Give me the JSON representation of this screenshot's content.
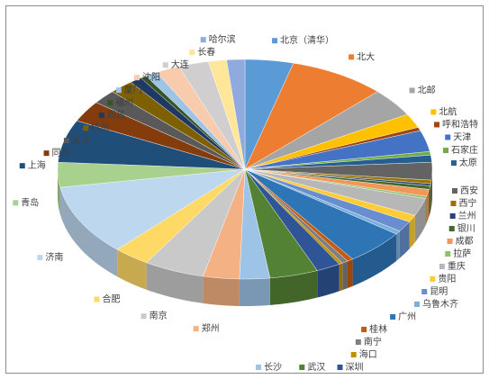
{
  "chart_data": {
    "type": "pie3d",
    "categories": [
      "北京（清华）",
      "北大",
      "北邮",
      "北航",
      "呼和浩特",
      "天津",
      "石家庄",
      "太原",
      "西安",
      "西宁",
      "兰州",
      "银川",
      "成都",
      "拉萨",
      "重庆",
      "贵阳",
      "昆明",
      "乌鲁木齐",
      "广州",
      "桂林",
      "南宁",
      "海口",
      "深圳",
      "武汉",
      "长沙",
      "郑州",
      "南京",
      "合肥",
      "济南",
      "青岛",
      "上海",
      "同济",
      "复旦",
      "杭州",
      "南昌",
      "福州",
      "厦门",
      "沈阳",
      "大连",
      "长春",
      "哈尔滨"
    ],
    "values": [
      4,
      8,
      4,
      2,
      0.5,
      3,
      0.5,
      1,
      2.5,
      0.5,
      0.3,
      0.5,
      1,
      0.3,
      2.5,
      1,
      1.5,
      0.5,
      5,
      0.5,
      0.5,
      0.3,
      2,
      4,
      2.5,
      3,
      5,
      3,
      10,
      3.5,
      6,
      3,
      2,
      2,
      1,
      0.5,
      1,
      2,
      2.5,
      1.5,
      1.5
    ],
    "colors": [
      "#5b9bd5",
      "#ed7d31",
      "#a5a5a5",
      "#ffc000",
      "#9e480e",
      "#4472c4",
      "#70ad47",
      "#255e91",
      "#636363",
      "#997300",
      "#264478",
      "#43682b",
      "#f1975a",
      "#8cc168",
      "#b7b7b7",
      "#ffcd33",
      "#698ed0",
      "#7cafdd",
      "#2e75b6",
      "#c55a11",
      "#7f7f7f",
      "#bf9000",
      "#2f5597",
      "#548235",
      "#9dc3e6",
      "#f4b183",
      "#c9c9c9",
      "#ffd966",
      "#bdd7ee",
      "#a9d18e",
      "#1f4e79",
      "#843c0c",
      "#595959",
      "#7f6000",
      "#203864",
      "#375623",
      "#9dc3e6",
      "#f8cbad",
      "#d0cece",
      "#ffe699",
      "#8faadc"
    ]
  }
}
